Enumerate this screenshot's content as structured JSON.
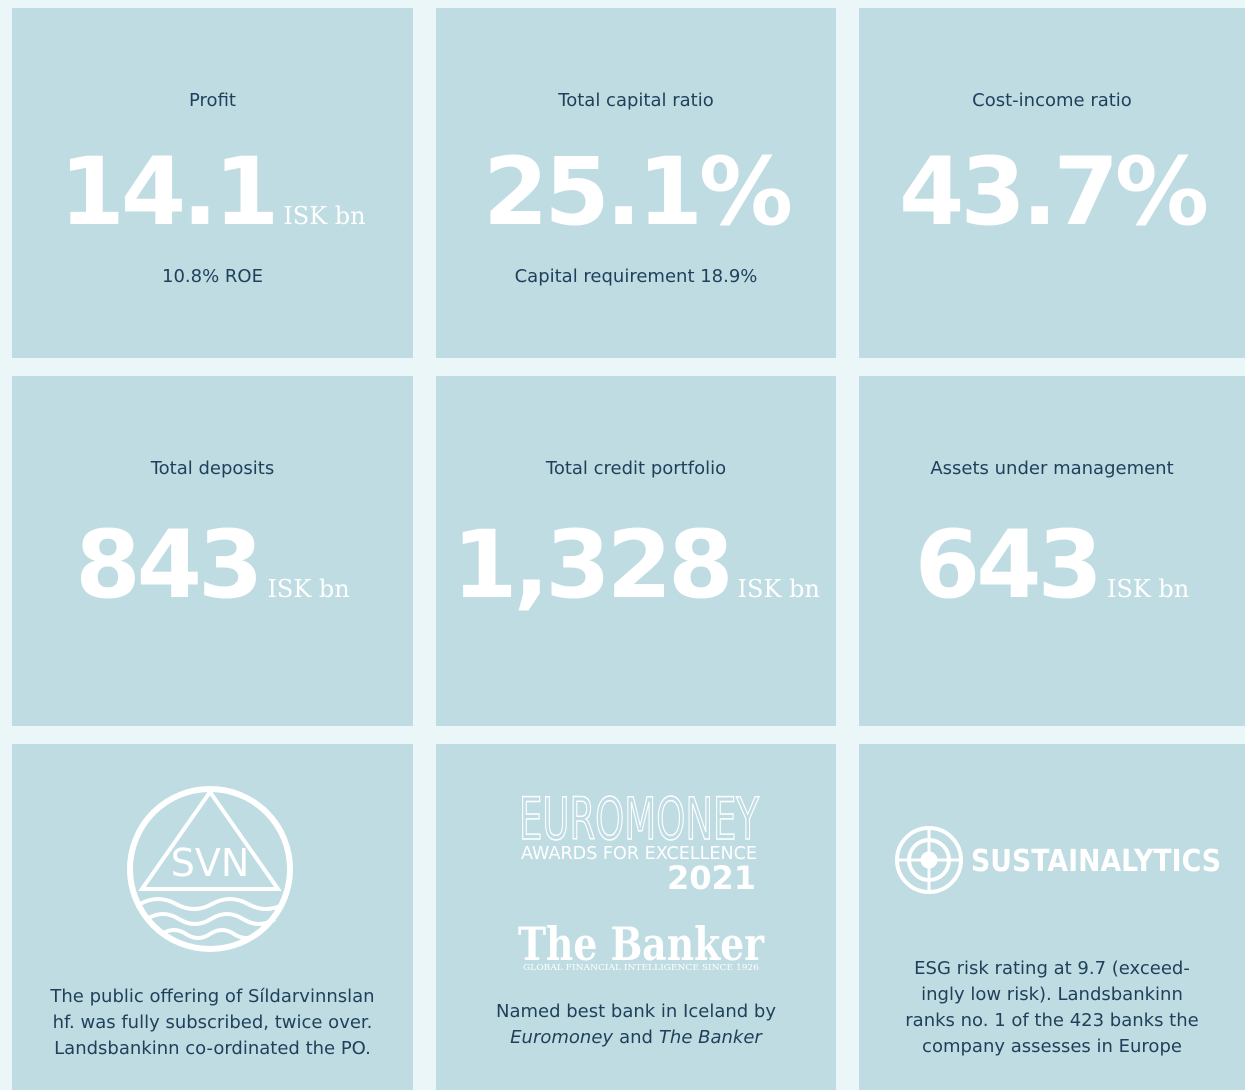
{
  "tiles": [
    {
      "label": "Profit",
      "value": "14.1",
      "unit": "ISK bn",
      "note": "10.8% ROE"
    },
    {
      "label": "Total capital ratio",
      "value": "25.1%",
      "note": "Capital requirement 18.9%"
    },
    {
      "label": "Cost-income ratio",
      "value": "43.7%"
    },
    {
      "label": "Total deposits",
      "value": "843",
      "unit": "ISK bn"
    },
    {
      "label": "Total credit portfolio",
      "value": "1,328",
      "unit": "ISK bn"
    },
    {
      "label": "Assets under management",
      "value": "643",
      "unit": "ISK bn"
    }
  ],
  "highlights": [
    {
      "logo": {
        "text": "SVN"
      },
      "caption": [
        "The public offering of Síldarvinnslan",
        "hf. was fully subscribed, twice over.",
        "Landsbankinn co-ordinated the PO."
      ]
    },
    {
      "logo": {
        "euromoney": "EUROMONEY",
        "awards": "AWARDS FOR EXCELLENCE",
        "year": "2021",
        "banker": "The Banker",
        "banker_tagline": "Global Financial Intelligence Since 1926"
      },
      "caption_line1": "Named best bank in Iceland by",
      "caption_line2": [
        {
          "text": "Euromoney",
          "italic": true
        },
        {
          "text": "and",
          "italic": false
        },
        {
          "text": "The Banker",
          "italic": true
        }
      ]
    },
    {
      "logo": {
        "text": "SUSTAINALYTICS"
      },
      "caption": [
        "ESG risk rating at 9.7 (exceed-",
        "ingly low risk). Landsbankinn",
        "ranks no. 1 of the 423 banks the",
        "company assesses in Europe"
      ]
    }
  ]
}
